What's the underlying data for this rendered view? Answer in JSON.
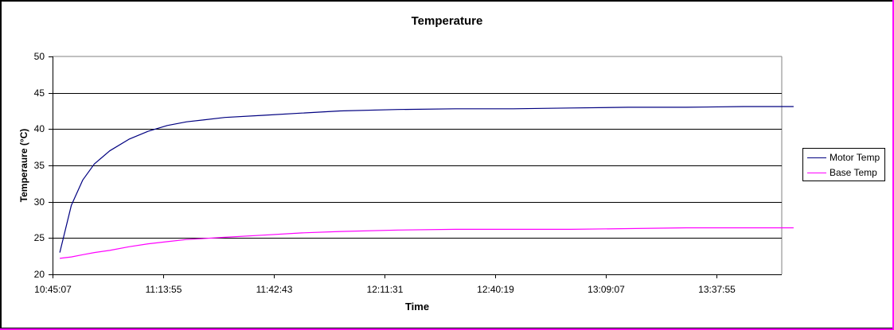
{
  "chart_data": {
    "type": "line",
    "title": "Temperature",
    "xlabel": "Time",
    "ylabel": "Temperaure (°C)",
    "ylim": [
      20,
      50
    ],
    "yticks": [
      20,
      25,
      30,
      35,
      40,
      45,
      50
    ],
    "xticks": [
      "10:45:07",
      "11:13:55",
      "11:42:43",
      "12:11:31",
      "12:40:19",
      "13:09:07",
      "13:37:55"
    ],
    "grid": "horizontal",
    "legend_position": "right",
    "x": [
      "10:47",
      "10:50",
      "10:53",
      "10:56",
      "11:00",
      "11:05",
      "11:10",
      "11:15",
      "11:20",
      "11:30",
      "11:40",
      "11:50",
      "12:00",
      "12:15",
      "12:30",
      "12:45",
      "13:00",
      "13:15",
      "13:30",
      "13:45",
      "13:58"
    ],
    "series": [
      {
        "name": "Motor Temp",
        "color": "#000080",
        "values": [
          23.0,
          29.5,
          33.0,
          35.2,
          37.0,
          38.6,
          39.7,
          40.5,
          41.0,
          41.6,
          41.9,
          42.2,
          42.5,
          42.7,
          42.8,
          42.8,
          42.9,
          43.0,
          43.0,
          43.1,
          43.1
        ]
      },
      {
        "name": "Base Temp",
        "color": "#ff00ff",
        "values": [
          22.2,
          22.4,
          22.7,
          23.0,
          23.3,
          23.8,
          24.2,
          24.5,
          24.8,
          25.1,
          25.4,
          25.7,
          25.9,
          26.1,
          26.2,
          26.2,
          26.2,
          26.3,
          26.4,
          26.4,
          26.4
        ]
      }
    ]
  },
  "legend": {
    "items": [
      {
        "label": "Motor Temp",
        "color": "#000080"
      },
      {
        "label": "Base Temp",
        "color": "#ff00ff"
      }
    ]
  }
}
